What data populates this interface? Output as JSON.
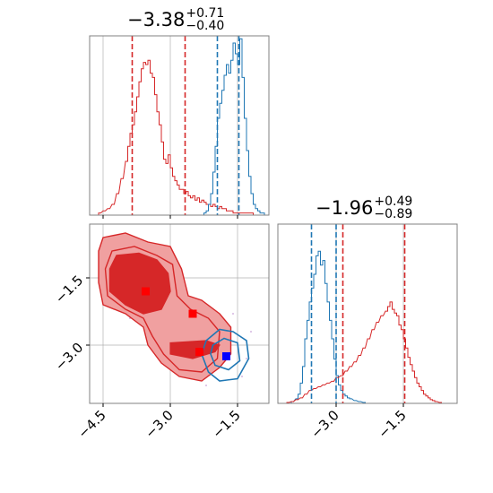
{
  "chart_data": {
    "type": "corner",
    "colors": {
      "red": "#d62728",
      "red_fill_dark": "#d62728",
      "red_fill_light": "#f0a0a0",
      "blue": "#1f77b4",
      "grid": "#b0b0b0"
    },
    "panels": [
      {
        "id": "hist-top",
        "type": "histogram",
        "title": {
          "value": "−3.38",
          "plus": "+0.71",
          "minus": "−0.40"
        },
        "xlim": [
          -4.8,
          -0.8
        ],
        "grid_x": [
          -4.5,
          -3.0,
          -1.5
        ],
        "vlines": [
          {
            "x": -3.85,
            "color": "red"
          },
          {
            "x": -2.67,
            "color": "red"
          },
          {
            "x": -1.95,
            "color": "blue"
          },
          {
            "x": -1.47,
            "color": "blue"
          }
        ],
        "series": [
          {
            "name": "",
            "color": "red",
            "ymax": 75,
            "bins": [
              [
                -4.6,
                1
              ],
              [
                -4.5,
                2
              ],
              [
                -4.4,
                3
              ],
              [
                -4.3,
                5
              ],
              [
                -4.2,
                10
              ],
              [
                -4.1,
                17
              ],
              [
                -4.0,
                25
              ],
              [
                -3.95,
                32
              ],
              [
                -3.9,
                38
              ],
              [
                -3.85,
                42
              ],
              [
                -3.8,
                48
              ],
              [
                -3.75,
                55
              ],
              [
                -3.7,
                62
              ],
              [
                -3.65,
                68
              ],
              [
                -3.6,
                71
              ],
              [
                -3.55,
                70
              ],
              [
                -3.5,
                72
              ],
              [
                -3.45,
                66
              ],
              [
                -3.4,
                64
              ],
              [
                -3.35,
                56
              ],
              [
                -3.3,
                48
              ],
              [
                -3.25,
                42
              ],
              [
                -3.2,
                34
              ],
              [
                -3.15,
                26
              ],
              [
                -3.1,
                24
              ],
              [
                -3.05,
                28
              ],
              [
                -3.0,
                22
              ],
              [
                -2.95,
                18
              ],
              [
                -2.9,
                16
              ],
              [
                -2.85,
                14
              ],
              [
                -2.8,
                12
              ],
              [
                -2.75,
                12
              ],
              [
                -2.7,
                10
              ],
              [
                -2.65,
                11
              ],
              [
                -2.6,
                9
              ],
              [
                -2.55,
                8
              ],
              [
                -2.5,
                9
              ],
              [
                -2.45,
                7
              ],
              [
                -2.4,
                8
              ],
              [
                -2.35,
                6
              ],
              [
                -2.3,
                7
              ],
              [
                -2.25,
                6
              ],
              [
                -2.2,
                5
              ],
              [
                -2.15,
                5
              ],
              [
                -2.1,
                4
              ],
              [
                -2.05,
                5
              ],
              [
                -2.0,
                4
              ],
              [
                -1.95,
                3
              ],
              [
                -1.9,
                4
              ],
              [
                -1.85,
                3
              ],
              [
                -1.8,
                3
              ],
              [
                -1.75,
                2
              ],
              [
                -1.7,
                2
              ],
              [
                -1.65,
                2
              ],
              [
                -1.6,
                1
              ],
              [
                -1.5,
                1
              ],
              [
                -1.4,
                1
              ],
              [
                -1.3,
                1
              ],
              [
                -1.2,
                1
              ]
            ]
          },
          {
            "name": "",
            "color": "blue",
            "ymax": 75,
            "bins": [
              [
                -2.25,
                1
              ],
              [
                -2.2,
                2
              ],
              [
                -2.15,
                5
              ],
              [
                -2.1,
                10
              ],
              [
                -2.05,
                20
              ],
              [
                -2.0,
                32
              ],
              [
                -1.95,
                45
              ],
              [
                -1.9,
                52
              ],
              [
                -1.85,
                58
              ],
              [
                -1.8,
                65
              ],
              [
                -1.75,
                70
              ],
              [
                -1.7,
                66
              ],
              [
                -1.65,
                72
              ],
              [
                -1.6,
                80
              ],
              [
                -1.55,
                75
              ],
              [
                -1.5,
                70
              ],
              [
                -1.45,
                82
              ],
              [
                -1.4,
                64
              ],
              [
                -1.35,
                45
              ],
              [
                -1.3,
                30
              ],
              [
                -1.25,
                18
              ],
              [
                -1.2,
                10
              ],
              [
                -1.15,
                5
              ],
              [
                -1.1,
                3
              ],
              [
                -1.05,
                2
              ],
              [
                -1.0,
                1
              ],
              [
                -0.95,
                1
              ]
            ]
          }
        ]
      },
      {
        "id": "hist-right",
        "type": "histogram",
        "title": {
          "value": "−1.96",
          "plus": "+0.49",
          "minus": "−0.89"
        },
        "xlim": [
          -4.3,
          -0.3
        ],
        "grid_x": [
          -3.0,
          -1.5
        ],
        "xticks": [
          "−3.0",
          "−1.5"
        ],
        "xtick_values": [
          -3.0,
          -1.5
        ],
        "vlines": [
          {
            "x": -3.55,
            "color": "blue"
          },
          {
            "x": -3.0,
            "color": "blue"
          },
          {
            "x": -2.85,
            "color": "red"
          },
          {
            "x": -1.47,
            "color": "red"
          }
        ],
        "series": [
          {
            "name": "",
            "color": "blue",
            "ymax": 175,
            "bins": [
              [
                -4.0,
                2
              ],
              [
                -3.9,
                5
              ],
              [
                -3.85,
                10
              ],
              [
                -3.8,
                22
              ],
              [
                -3.75,
                40
              ],
              [
                -3.7,
                70
              ],
              [
                -3.65,
                90
              ],
              [
                -3.6,
                110
              ],
              [
                -3.55,
                125
              ],
              [
                -3.5,
                140
              ],
              [
                -3.45,
                160
              ],
              [
                -3.4,
                165
              ],
              [
                -3.35,
                150
              ],
              [
                -3.3,
                155
              ],
              [
                -3.25,
                130
              ],
              [
                -3.2,
                110
              ],
              [
                -3.15,
                90
              ],
              [
                -3.1,
                70
              ],
              [
                -3.05,
                48
              ],
              [
                -3.0,
                30
              ],
              [
                -2.95,
                20
              ],
              [
                -2.9,
                14
              ],
              [
                -2.85,
                10
              ],
              [
                -2.8,
                8
              ],
              [
                -2.75,
                6
              ],
              [
                -2.7,
                5
              ],
              [
                -2.6,
                3
              ],
              [
                -2.5,
                2
              ],
              [
                -2.4,
                1
              ]
            ]
          },
          {
            "name": "",
            "color": "red",
            "ymax": 175,
            "bins": [
              [
                -4.1,
                1
              ],
              [
                -4.0,
                2
              ],
              [
                -3.9,
                4
              ],
              [
                -3.8,
                6
              ],
              [
                -3.7,
                10
              ],
              [
                -3.6,
                14
              ],
              [
                -3.5,
                16
              ],
              [
                -3.4,
                18
              ],
              [
                -3.3,
                20
              ],
              [
                -3.2,
                22
              ],
              [
                -3.1,
                24
              ],
              [
                -3.0,
                28
              ],
              [
                -2.9,
                30
              ],
              [
                -2.8,
                35
              ],
              [
                -2.7,
                40
              ],
              [
                -2.6,
                45
              ],
              [
                -2.5,
                52
              ],
              [
                -2.4,
                60
              ],
              [
                -2.3,
                70
              ],
              [
                -2.2,
                80
              ],
              [
                -2.1,
                88
              ],
              [
                -2.0,
                95
              ],
              [
                -1.9,
                100
              ],
              [
                -1.85,
                105
              ],
              [
                -1.8,
                110
              ],
              [
                -1.75,
                102
              ],
              [
                -1.7,
                98
              ],
              [
                -1.65,
                95
              ],
              [
                -1.6,
                85
              ],
              [
                -1.55,
                80
              ],
              [
                -1.5,
                70
              ],
              [
                -1.45,
                60
              ],
              [
                -1.4,
                50
              ],
              [
                -1.35,
                42
              ],
              [
                -1.3,
                35
              ],
              [
                -1.25,
                28
              ],
              [
                -1.2,
                22
              ],
              [
                -1.15,
                18
              ],
              [
                -1.1,
                14
              ],
              [
                -1.05,
                10
              ],
              [
                -1.0,
                8
              ],
              [
                -0.95,
                6
              ],
              [
                -0.9,
                4
              ],
              [
                -0.85,
                3
              ],
              [
                -0.8,
                2
              ],
              [
                -0.7,
                1
              ]
            ]
          }
        ]
      },
      {
        "id": "contour-2d",
        "type": "contour",
        "xlim": [
          -4.8,
          -0.8
        ],
        "ylim": [
          -0.3,
          -4.3
        ],
        "grid_x": [
          -4.5,
          -3.0,
          -1.5
        ],
        "grid_y": [
          -1.5,
          -3.0
        ],
        "xticks": [
          "−4.5",
          "−3.0",
          "−1.5"
        ],
        "xtick_values": [
          -4.5,
          -3.0,
          -1.5
        ],
        "yticks": [
          "−1.5",
          "−3.0"
        ],
        "ytick_values": [
          -1.5,
          -3.0
        ],
        "red_outer": [
          [
            -4.5,
            -0.6
          ],
          [
            -4.0,
            -0.5
          ],
          [
            -3.5,
            -0.7
          ],
          [
            -3.0,
            -0.8
          ],
          [
            -2.75,
            -1.3
          ],
          [
            -2.6,
            -1.9
          ],
          [
            -2.3,
            -2.0
          ],
          [
            -1.9,
            -2.3
          ],
          [
            -1.65,
            -2.6
          ],
          [
            -1.65,
            -3.2
          ],
          [
            -1.9,
            -3.5
          ],
          [
            -2.3,
            -3.8
          ],
          [
            -2.8,
            -3.7
          ],
          [
            -3.2,
            -3.4
          ],
          [
            -3.5,
            -3.0
          ],
          [
            -3.6,
            -2.6
          ],
          [
            -4.0,
            -2.3
          ],
          [
            -4.5,
            -2.1
          ],
          [
            -4.6,
            -1.6
          ],
          [
            -4.6,
            -0.9
          ]
        ],
        "red_mid": [
          [
            -4.3,
            -0.9
          ],
          [
            -3.8,
            -0.8
          ],
          [
            -3.3,
            -1.0
          ],
          [
            -2.95,
            -1.2
          ],
          [
            -2.85,
            -1.9
          ],
          [
            -2.55,
            -2.2
          ],
          [
            -2.15,
            -2.4
          ],
          [
            -1.9,
            -2.7
          ],
          [
            -1.95,
            -3.3
          ],
          [
            -2.3,
            -3.6
          ],
          [
            -2.8,
            -3.55
          ],
          [
            -3.15,
            -3.2
          ],
          [
            -3.4,
            -2.8
          ],
          [
            -3.6,
            -2.4
          ],
          [
            -4.0,
            -2.2
          ],
          [
            -4.4,
            -1.9
          ],
          [
            -4.45,
            -1.3
          ]
        ],
        "red_inner": [
          [
            -4.2,
            -1.0
          ],
          [
            -3.7,
            -0.95
          ],
          [
            -3.3,
            -1.1
          ],
          [
            -3.05,
            -1.4
          ],
          [
            -3.0,
            -1.8
          ],
          [
            -3.2,
            -2.2
          ],
          [
            -3.6,
            -2.3
          ],
          [
            -4.0,
            -2.1
          ],
          [
            -4.35,
            -1.8
          ],
          [
            -4.35,
            -1.3
          ]
        ],
        "red_band": [
          [
            -3.0,
            -2.95
          ],
          [
            -2.2,
            -2.9
          ],
          [
            -1.9,
            -3.0
          ],
          [
            -2.0,
            -3.15
          ],
          [
            -2.5,
            -3.3
          ],
          [
            -3.0,
            -3.2
          ]
        ],
        "blue_outer": [
          [
            -2.2,
            -2.9
          ],
          [
            -1.9,
            -2.65
          ],
          [
            -1.6,
            -2.7
          ],
          [
            -1.3,
            -2.9
          ],
          [
            -1.25,
            -3.3
          ],
          [
            -1.5,
            -3.75
          ],
          [
            -1.9,
            -3.8
          ],
          [
            -2.15,
            -3.6
          ],
          [
            -2.3,
            -3.2
          ]
        ],
        "blue_inner": [
          [
            -2.05,
            -3.0
          ],
          [
            -1.8,
            -2.85
          ],
          [
            -1.5,
            -2.95
          ],
          [
            -1.45,
            -3.35
          ],
          [
            -1.7,
            -3.55
          ],
          [
            -2.0,
            -3.45
          ],
          [
            -2.1,
            -3.2
          ]
        ],
        "markers": [
          {
            "x": -3.55,
            "y": -1.8,
            "color": "red"
          },
          {
            "x": -2.5,
            "y": -2.3,
            "color": "red"
          },
          {
            "x": -2.35,
            "y": -3.15,
            "color": "red"
          },
          {
            "x": -1.75,
            "y": -3.25,
            "color": "blue"
          }
        ]
      }
    ]
  }
}
